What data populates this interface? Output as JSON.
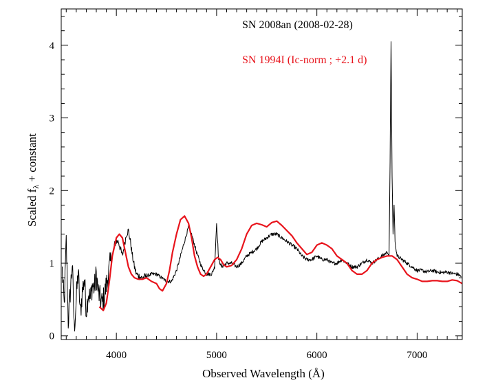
{
  "chart_data": {
    "type": "line",
    "title": "",
    "xlabel": "Observed Wavelength (Å)",
    "ylabel_main": "Scaled f",
    "ylabel_sub": "λ",
    "ylabel_tail": " + constant",
    "xlim": [
      3450,
      7450
    ],
    "ylim": [
      -0.05,
      4.5
    ],
    "xticks": [
      4000,
      5000,
      6000,
      7000
    ],
    "xtick_labels": [
      "4000",
      "5000",
      "6000",
      "7000"
    ],
    "yticks": [
      0,
      1,
      2,
      3,
      4
    ],
    "ytick_labels": [
      "0",
      "1",
      "2",
      "3",
      "4"
    ],
    "grid": false,
    "legend_position": "top-right",
    "series": [
      {
        "name": "SN 2008an (2008-02-28)",
        "color": "#000000",
        "style": "noisy-spectrum",
        "x": [
          3460,
          3480,
          3500,
          3520,
          3540,
          3560,
          3580,
          3600,
          3620,
          3640,
          3660,
          3680,
          3700,
          3720,
          3740,
          3760,
          3780,
          3800,
          3820,
          3840,
          3860,
          3880,
          3900,
          3920,
          3940,
          3960,
          3980,
          4000,
          4020,
          4040,
          4060,
          4080,
          4100,
          4120,
          4140,
          4160,
          4180,
          4200,
          4250,
          4300,
          4350,
          4400,
          4450,
          4500,
          4550,
          4600,
          4650,
          4700,
          4720,
          4750,
          4800,
          4850,
          4900,
          4950,
          4980,
          5000,
          5020,
          5050,
          5100,
          5150,
          5200,
          5250,
          5300,
          5350,
          5400,
          5450,
          5500,
          5550,
          5600,
          5650,
          5700,
          5750,
          5800,
          5850,
          5900,
          5950,
          6000,
          6050,
          6100,
          6150,
          6200,
          6250,
          6300,
          6350,
          6400,
          6450,
          6500,
          6550,
          6600,
          6650,
          6700,
          6720,
          6730,
          6740,
          6750,
          6760,
          6770,
          6780,
          6800,
          6850,
          6900,
          6950,
          7000,
          7050,
          7100,
          7150,
          7200,
          7250,
          7300,
          7350,
          7400,
          7440
        ],
        "y": [
          0.9,
          0.4,
          1.3,
          0.2,
          0.6,
          1.0,
          0.1,
          0.5,
          0.9,
          0.3,
          0.6,
          0.8,
          0.35,
          0.6,
          0.5,
          0.7,
          0.65,
          0.85,
          0.6,
          0.5,
          0.45,
          0.55,
          0.7,
          0.85,
          1.0,
          1.1,
          1.25,
          1.3,
          1.3,
          1.2,
          1.1,
          1.25,
          1.4,
          1.45,
          1.3,
          1.1,
          0.95,
          0.85,
          0.8,
          0.82,
          0.85,
          0.85,
          0.8,
          0.75,
          0.75,
          0.9,
          1.15,
          1.4,
          1.5,
          1.4,
          1.15,
          0.95,
          0.85,
          0.85,
          0.95,
          1.55,
          1.05,
          0.95,
          1.0,
          1.0,
          0.95,
          1.0,
          1.1,
          1.15,
          1.2,
          1.3,
          1.35,
          1.4,
          1.4,
          1.35,
          1.3,
          1.25,
          1.2,
          1.1,
          1.05,
          1.05,
          1.1,
          1.05,
          1.05,
          1.0,
          1.0,
          1.05,
          1.0,
          0.95,
          0.95,
          1.0,
          1.05,
          1.0,
          1.05,
          1.1,
          1.15,
          1.1,
          2.4,
          4.05,
          2.2,
          1.4,
          1.8,
          1.3,
          1.1,
          1.05,
          1.0,
          0.95,
          0.9,
          0.9,
          0.88,
          0.9,
          0.88,
          0.87,
          0.88,
          0.86,
          0.85,
          0.82
        ]
      },
      {
        "name": "SN 1994I (Ic-norm ; +2.1 d)",
        "color": "#e8141c",
        "style": "smooth",
        "x": [
          3830,
          3870,
          3900,
          3930,
          3960,
          4000,
          4030,
          4060,
          4090,
          4120,
          4150,
          4180,
          4220,
          4260,
          4300,
          4350,
          4400,
          4430,
          4460,
          4500,
          4530,
          4560,
          4600,
          4640,
          4680,
          4720,
          4750,
          4780,
          4810,
          4840,
          4870,
          4900,
          4940,
          4980,
          5010,
          5040,
          5070,
          5100,
          5150,
          5200,
          5250,
          5300,
          5350,
          5400,
          5450,
          5500,
          5550,
          5600,
          5650,
          5700,
          5750,
          5800,
          5850,
          5900,
          5950,
          6000,
          6050,
          6100,
          6150,
          6200,
          6250,
          6300,
          6350,
          6400,
          6450,
          6500,
          6550,
          6600,
          6650,
          6700,
          6750,
          6800,
          6850,
          6900,
          6950,
          7000,
          7050,
          7100,
          7150,
          7200,
          7250,
          7300,
          7350,
          7400,
          7450
        ],
        "y": [
          0.4,
          0.35,
          0.45,
          0.75,
          1.1,
          1.35,
          1.4,
          1.35,
          1.15,
          0.95,
          0.85,
          0.8,
          0.78,
          0.78,
          0.8,
          0.75,
          0.72,
          0.65,
          0.62,
          0.72,
          0.9,
          1.15,
          1.4,
          1.6,
          1.65,
          1.55,
          1.35,
          1.1,
          0.95,
          0.85,
          0.82,
          0.85,
          0.95,
          1.05,
          1.08,
          1.05,
          0.98,
          0.95,
          0.97,
          1.05,
          1.2,
          1.4,
          1.52,
          1.55,
          1.53,
          1.5,
          1.56,
          1.58,
          1.52,
          1.45,
          1.38,
          1.28,
          1.2,
          1.12,
          1.15,
          1.25,
          1.28,
          1.25,
          1.2,
          1.1,
          1.05,
          1.0,
          0.9,
          0.85,
          0.85,
          0.9,
          1.0,
          1.05,
          1.08,
          1.1,
          1.1,
          1.05,
          0.95,
          0.85,
          0.8,
          0.78,
          0.75,
          0.75,
          0.76,
          0.76,
          0.75,
          0.75,
          0.77,
          0.76,
          0.72
        ]
      }
    ]
  }
}
